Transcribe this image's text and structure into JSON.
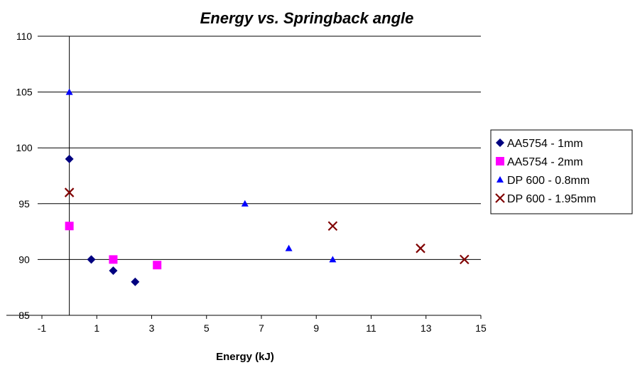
{
  "chart_data": {
    "type": "scatter",
    "title": "Energy vs. Springback angle",
    "xlabel": "Energy (kJ)",
    "ylabel": "",
    "xlim": [
      -1,
      15
    ],
    "ylim": [
      85,
      110
    ],
    "xticks": [
      "-1",
      "1",
      "3",
      "5",
      "7",
      "9",
      "11",
      "13",
      "15"
    ],
    "yticks": [
      "85",
      "90",
      "95",
      "100",
      "105",
      "110"
    ],
    "grid": "horizontal",
    "legend_position": "right",
    "series": [
      {
        "name": "AA5754 - 1mm",
        "marker": "diamond",
        "color": "#000080",
        "points": [
          [
            0,
            99
          ],
          [
            0.8,
            90
          ],
          [
            1.6,
            89
          ],
          [
            2.4,
            88
          ]
        ]
      },
      {
        "name": "AA5754 - 2mm",
        "marker": "square",
        "color": "#FF00FF",
        "points": [
          [
            0,
            93
          ],
          [
            1.6,
            90
          ],
          [
            3.2,
            89.5
          ]
        ]
      },
      {
        "name": "DP 600 - 0.8mm",
        "marker": "triangle",
        "color": "#0000FF",
        "points": [
          [
            0,
            105
          ],
          [
            6.4,
            95
          ],
          [
            8,
            91
          ],
          [
            9.6,
            90
          ]
        ]
      },
      {
        "name": "DP 600 - 1.95mm",
        "marker": "x",
        "color": "#800000",
        "points": [
          [
            0,
            96
          ],
          [
            9.6,
            93
          ],
          [
            12.8,
            91
          ],
          [
            14.4,
            90
          ]
        ]
      }
    ]
  }
}
